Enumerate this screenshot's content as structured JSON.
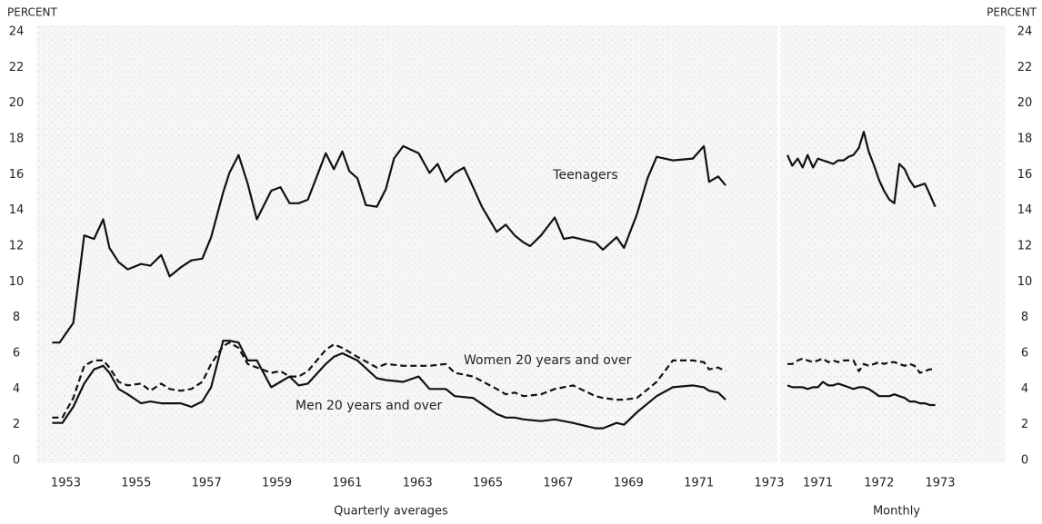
{
  "chart_data": [
    {
      "type": "line",
      "ylabel": "PERCENT",
      "xlabel": "Quarterly averages",
      "yaxis_side": "left",
      "xlim": [
        1952.6,
        1973
      ],
      "xticks": [
        1953,
        1955,
        1957,
        1959,
        1961,
        1963,
        1965,
        1967,
        1969,
        1971,
        1973
      ],
      "ylim": [
        0,
        24
      ],
      "yticks": [
        0,
        2,
        4,
        6,
        8,
        10,
        12,
        14,
        16,
        18,
        20,
        22,
        24
      ],
      "series": [
        {
          "name": "Teenagers",
          "color": "#111111",
          "style": "solid",
          "x": [
            1952.61,
            1952.82,
            1953.21,
            1953.52,
            1953.8,
            1954.06,
            1954.24,
            1954.5,
            1954.76,
            1955.14,
            1955.4,
            1955.71,
            1955.95,
            1956.26,
            1956.57,
            1956.88,
            1957.13,
            1957.47,
            1957.65,
            1957.91,
            1958.17,
            1958.43,
            1958.84,
            1959.1,
            1959.36,
            1959.62,
            1959.88,
            1960.39,
            1960.62,
            1960.86,
            1961.06,
            1961.29,
            1961.53,
            1961.84,
            1962.1,
            1962.33,
            1962.59,
            1963.03,
            1963.34,
            1963.57,
            1963.8,
            1964.06,
            1964.32,
            1964.58,
            1964.83,
            1965.25,
            1965.51,
            1965.76,
            1966.02,
            1966.2,
            1966.51,
            1966.9,
            1967.16,
            1967.42,
            1968.06,
            1968.27,
            1968.66,
            1968.87,
            1969.24,
            1969.54,
            1969.8,
            1970.26,
            1970.83,
            1971.14,
            1971.29,
            1971.55,
            1971.76
          ],
          "values": [
            6.6,
            6.6,
            7.7,
            12.6,
            12.4,
            13.5,
            11.9,
            11.1,
            10.7,
            11.0,
            10.9,
            11.5,
            10.3,
            10.8,
            11.2,
            11.3,
            12.5,
            15.0,
            16.1,
            17.1,
            15.5,
            13.5,
            15.1,
            15.3,
            14.4,
            14.4,
            14.6,
            17.2,
            16.3,
            17.3,
            16.2,
            15.8,
            14.3,
            14.2,
            15.2,
            16.9,
            17.6,
            17.2,
            16.1,
            16.6,
            15.6,
            16.1,
            16.4,
            15.3,
            14.2,
            12.8,
            13.2,
            12.6,
            12.2,
            12.0,
            12.6,
            13.6,
            12.4,
            12.5,
            12.2,
            11.8,
            12.5,
            11.9,
            13.8,
            15.8,
            17.0,
            16.8,
            16.9,
            17.6,
            15.6,
            15.9,
            15.4
          ]
        },
        {
          "name": "Women 20 years and over",
          "color": "#111111",
          "style": "dashed",
          "x": [
            1952.61,
            1952.9,
            1953.21,
            1953.52,
            1953.8,
            1954.06,
            1954.24,
            1954.5,
            1954.76,
            1955.14,
            1955.4,
            1955.71,
            1955.95,
            1956.26,
            1956.57,
            1956.88,
            1957.13,
            1957.47,
            1957.65,
            1957.91,
            1958.17,
            1958.43,
            1958.84,
            1959.1,
            1959.36,
            1959.62,
            1959.88,
            1960.39,
            1960.62,
            1960.86,
            1961.29,
            1961.84,
            1962.1,
            1962.59,
            1963.03,
            1963.34,
            1963.8,
            1964.06,
            1964.58,
            1965.25,
            1965.51,
            1965.76,
            1966.02,
            1966.51,
            1966.9,
            1967.42,
            1968.06,
            1968.27,
            1968.66,
            1968.87,
            1969.24,
            1969.8,
            1970.26,
            1970.83,
            1971.14,
            1971.29,
            1971.55,
            1971.76
          ],
          "values": [
            2.4,
            2.4,
            3.5,
            5.3,
            5.6,
            5.6,
            5.2,
            4.4,
            4.2,
            4.3,
            3.9,
            4.3,
            4.0,
            3.9,
            4.0,
            4.4,
            5.4,
            6.4,
            6.6,
            6.3,
            5.4,
            5.2,
            4.9,
            5.0,
            4.7,
            4.7,
            5.0,
            6.2,
            6.5,
            6.3,
            5.8,
            5.2,
            5.4,
            5.3,
            5.3,
            5.3,
            5.4,
            4.9,
            4.7,
            4.0,
            3.7,
            3.8,
            3.6,
            3.7,
            4.0,
            4.2,
            3.6,
            3.5,
            3.4,
            3.4,
            3.5,
            4.4,
            5.6,
            5.6,
            5.5,
            5.1,
            5.2,
            5.0
          ]
        },
        {
          "name": "Men 20 years and over",
          "color": "#111111",
          "style": "solid",
          "x": [
            1952.61,
            1952.9,
            1953.21,
            1953.52,
            1953.8,
            1954.06,
            1954.24,
            1954.5,
            1954.76,
            1955.14,
            1955.4,
            1955.71,
            1955.95,
            1956.26,
            1956.57,
            1956.88,
            1957.13,
            1957.47,
            1957.65,
            1957.91,
            1958.17,
            1958.43,
            1958.84,
            1959.1,
            1959.36,
            1959.62,
            1959.88,
            1960.39,
            1960.62,
            1960.86,
            1961.29,
            1961.84,
            1962.1,
            1962.59,
            1963.03,
            1963.34,
            1963.8,
            1964.06,
            1964.58,
            1965.25,
            1965.51,
            1965.76,
            1966.02,
            1966.51,
            1966.9,
            1967.42,
            1968.06,
            1968.27,
            1968.66,
            1968.87,
            1969.24,
            1969.8,
            1970.26,
            1970.83,
            1971.14,
            1971.29,
            1971.55,
            1971.76
          ],
          "values": [
            2.1,
            2.1,
            3.0,
            4.3,
            5.1,
            5.3,
            4.9,
            4.0,
            3.7,
            3.2,
            3.3,
            3.2,
            3.2,
            3.2,
            3.0,
            3.3,
            4.1,
            6.7,
            6.7,
            6.6,
            5.6,
            5.6,
            4.1,
            4.4,
            4.7,
            4.2,
            4.3,
            5.4,
            5.8,
            6.0,
            5.6,
            4.6,
            4.5,
            4.4,
            4.7,
            4.0,
            4.0,
            3.6,
            3.5,
            2.6,
            2.4,
            2.4,
            2.3,
            2.2,
            2.3,
            2.1,
            1.8,
            1.8,
            2.1,
            2.0,
            2.7,
            3.6,
            4.1,
            4.2,
            4.1,
            3.9,
            3.8,
            3.4
          ]
        }
      ]
    },
    {
      "type": "line",
      "ylabel": "PERCENT",
      "xlabel": "Monthly",
      "yaxis_side": "right",
      "xlim": [
        1970.5,
        1973
      ],
      "xticks": [
        1971,
        1972,
        1973
      ],
      "ylim": [
        0,
        24
      ],
      "yticks": [
        0,
        2,
        4,
        6,
        8,
        10,
        12,
        14,
        16,
        18,
        20,
        22,
        24
      ],
      "x": [
        1970.5,
        1970.58,
        1970.67,
        1970.75,
        1970.83,
        1970.92,
        1971,
        1971.08,
        1971.17,
        1971.25,
        1971.33,
        1971.42,
        1971.5,
        1971.58,
        1971.67,
        1971.75,
        1971.83,
        1971.92,
        1972,
        1972.08,
        1972.17,
        1972.25,
        1972.33,
        1972.42,
        1972.5,
        1972.58,
        1972.67,
        1972.75,
        1972.83,
        1972.92
      ],
      "series": [
        {
          "color": "#111111",
          "style": "solid",
          "values": [
            17.1,
            16.5,
            16.9,
            16.4,
            17.1,
            16.4,
            16.9,
            16.8,
            16.7,
            16.6,
            16.8,
            16.8,
            17.0,
            17.1,
            17.5,
            18.4,
            17.3,
            16.5,
            15.7,
            15.1,
            14.6,
            14.4,
            16.6,
            16.3,
            15.7,
            15.3,
            15.4,
            15.5,
            14.9,
            14.2
          ]
        },
        {
          "color": "#111111",
          "style": "dashed",
          "values": [
            5.4,
            5.4,
            5.6,
            5.7,
            5.6,
            5.5,
            5.6,
            5.7,
            5.5,
            5.6,
            5.5,
            5.6,
            5.6,
            5.6,
            5.0,
            5.4,
            5.3,
            5.4,
            5.5,
            5.4,
            5.5,
            5.5,
            5.4,
            5.3,
            5.4,
            5.3,
            4.9,
            5.0,
            5.1,
            5.1
          ]
        },
        {
          "color": "#111111",
          "style": "solid",
          "values": [
            4.2,
            4.1,
            4.1,
            4.1,
            4.0,
            4.1,
            4.1,
            4.4,
            4.2,
            4.2,
            4.3,
            4.2,
            4.1,
            4.0,
            4.1,
            4.1,
            4.0,
            3.8,
            3.6,
            3.6,
            3.6,
            3.7,
            3.6,
            3.5,
            3.3,
            3.3,
            3.2,
            3.2,
            3.1,
            3.1
          ]
        }
      ]
    }
  ]
}
